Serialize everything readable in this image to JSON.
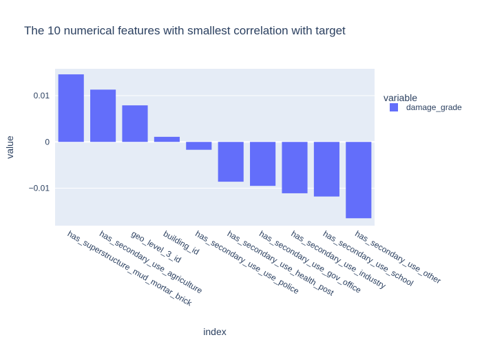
{
  "chart_data": {
    "type": "bar",
    "title": "The 10 numerical features with smallest correlation with target",
    "xlabel": "index",
    "ylabel": "value",
    "categories": [
      "has_superstructure_mud_mortar_brick",
      "has_secondary_use_agriculture",
      "geo_level_3_id",
      "building_id",
      "has_secondary_use_use_police",
      "has_secondary_use_health_post",
      "has_secondary_use_gov_office",
      "has_secondary_use_industry",
      "has_secondary_use_school",
      "has_secondary_use_other"
    ],
    "series": [
      {
        "name": "damage_grade",
        "values": [
          0.0146,
          0.0113,
          0.0079,
          0.0011,
          -0.0017,
          -0.0086,
          -0.0095,
          -0.0111,
          -0.0118,
          -0.0165
        ],
        "color": "#636efa"
      }
    ],
    "ylim": [
      -0.0181,
      0.0158
    ],
    "yticks": [
      {
        "value": 0.01,
        "label": "0.01"
      },
      {
        "value": 0,
        "label": "0"
      },
      {
        "value": -0.01,
        "label": "−0.01"
      }
    ],
    "legend": {
      "title": "variable",
      "position": "top-right"
    },
    "plot_background": "#e5ecf6",
    "grid": true
  }
}
